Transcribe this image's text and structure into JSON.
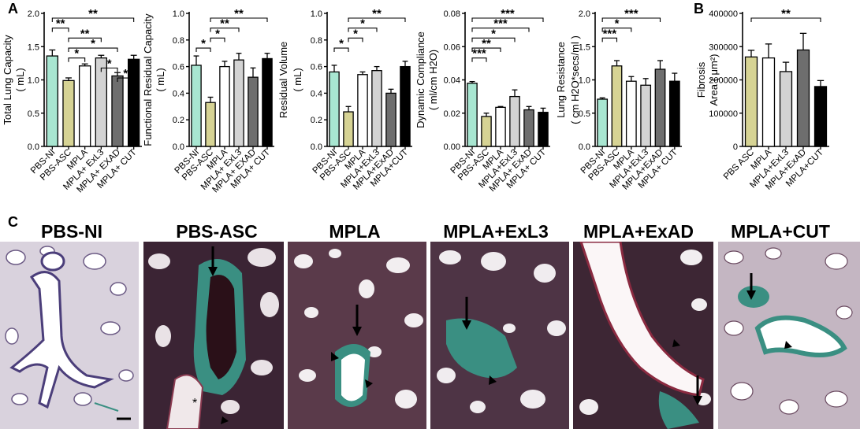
{
  "panel_letters": {
    "a": "A",
    "b": "B",
    "c": "C"
  },
  "colors": {
    "PBS-NI": "#a8e6d1",
    "PBS-ASC": "#d6d394",
    "MPLA": "#ffffff",
    "MPLA+ExL3": "#d3d3d3",
    "MPLA+ExAD": "#6e6e6e",
    "MPLA+CUT": "#000000",
    "fibrosis_stain": "#3a8f82",
    "tissue": "#4a2a3a",
    "background_tissue": "#c9c0cf"
  },
  "chart_data": [
    {
      "type": "bar",
      "panel": "A",
      "ylabel_lines": [
        "Total Lung Capacity",
        "( mL)"
      ],
      "categories": [
        "PBS-NI",
        "PBS-ASC",
        "MPLA",
        "MPLA+ ExL3",
        "MPLA+ EXAD",
        "MPLA+ CUT"
      ],
      "values": [
        1.36,
        0.99,
        1.21,
        1.33,
        1.06,
        1.31
      ],
      "errors": [
        0.09,
        0.04,
        0.03,
        0.04,
        0.05,
        0.06
      ],
      "ylim": [
        0,
        2.0
      ],
      "yticks": [
        "0.0",
        "0.5",
        "1.0",
        "1.5",
        "2.0"
      ],
      "significance": [
        {
          "from": 0,
          "to": 5,
          "label": "**"
        },
        {
          "from": 0,
          "to": 1,
          "label": "**"
        },
        {
          "from": 1,
          "to": 3,
          "label": "**"
        },
        {
          "from": 1,
          "to": 4,
          "label": "*"
        },
        {
          "from": 1,
          "to": 2,
          "label": "*"
        },
        {
          "from": 3,
          "to": 4,
          "label": "*"
        },
        {
          "from": 4,
          "to": 5,
          "label": "*"
        }
      ]
    },
    {
      "type": "bar",
      "ylabel_lines": [
        "Functional Residual Capacity",
        "( mL)"
      ],
      "categories": [
        "PBS-NI",
        "PBS-ASC",
        "MPLA",
        "MPLA+ ExL3",
        "MPLA+ EXAD",
        "MPLA+ CUT"
      ],
      "values": [
        0.61,
        0.33,
        0.6,
        0.65,
        0.52,
        0.66
      ],
      "errors": [
        0.07,
        0.04,
        0.04,
        0.05,
        0.07,
        0.04
      ],
      "ylim": [
        0,
        1.0
      ],
      "yticks": [
        "0.0",
        "0.2",
        "0.4",
        "0.6",
        "0.8",
        "1.0"
      ],
      "significance": [
        {
          "from": 1,
          "to": 5,
          "label": "**"
        },
        {
          "from": 1,
          "to": 3,
          "label": "**"
        },
        {
          "from": 1,
          "to": 2,
          "label": "*"
        },
        {
          "from": 0,
          "to": 1,
          "label": "*"
        }
      ]
    },
    {
      "type": "bar",
      "ylabel_lines": [
        "Residual Volume",
        "( mL)"
      ],
      "categories": [
        "PBS-NI",
        "PBS-ASC",
        "MPLA",
        "MPLA+ExL3",
        "MPLA+ExAD",
        "MPLA+CUT"
      ],
      "values": [
        0.56,
        0.26,
        0.54,
        0.57,
        0.4,
        0.6
      ],
      "errors": [
        0.05,
        0.04,
        0.02,
        0.03,
        0.03,
        0.04
      ],
      "ylim": [
        0,
        1.0
      ],
      "yticks": [
        "0.0",
        "0.2",
        "0.4",
        "0.6",
        "0.8",
        "1.0"
      ],
      "significance": [
        {
          "from": 1,
          "to": 5,
          "label": "**"
        },
        {
          "from": 1,
          "to": 3,
          "label": "*"
        },
        {
          "from": 1,
          "to": 2,
          "label": "*"
        },
        {
          "from": 0,
          "to": 1,
          "label": "*"
        }
      ]
    },
    {
      "type": "bar",
      "ylabel_lines": [
        "Dynamic Compliance",
        "( ml/cm H2O)"
      ],
      "categories": [
        "PBS-NI",
        "PBS-ASC",
        "MPLA",
        "MPLA+ExL3",
        "MPLA+ ExAD",
        "MPLA+ CUT"
      ],
      "values": [
        0.038,
        0.018,
        0.0235,
        0.03,
        0.022,
        0.0205
      ],
      "errors": [
        0.001,
        0.002,
        0.0005,
        0.004,
        0.002,
        0.0025
      ],
      "ylim": [
        0,
        0.08
      ],
      "yticks": [
        "0.00",
        "0.02",
        "0.04",
        "0.06",
        "0.08"
      ],
      "significance": [
        {
          "from": 0,
          "to": 5,
          "label": "***"
        },
        {
          "from": 0,
          "to": 4,
          "label": "***"
        },
        {
          "from": 0,
          "to": 3,
          "label": "*"
        },
        {
          "from": 0,
          "to": 2,
          "label": "**"
        },
        {
          "from": 0,
          "to": 1,
          "label": "***"
        }
      ]
    },
    {
      "type": "bar",
      "ylabel_lines": [
        "Lung Resistance",
        "( cm H2O*secs/ml )"
      ],
      "categories": [
        "PBS-NI",
        "PBS-ASC",
        "MPLA",
        "MPLA+ExL3",
        "MPLA+ExAD",
        "MPLA+ CUT"
      ],
      "values": [
        0.71,
        1.21,
        0.98,
        0.92,
        1.16,
        0.98
      ],
      "errors": [
        0.02,
        0.08,
        0.07,
        0.1,
        0.13,
        0.12
      ],
      "ylim": [
        0,
        2.0
      ],
      "yticks": [
        "0.0",
        "0.5",
        "1.0",
        "1.5",
        "2.0"
      ],
      "significance": [
        {
          "from": 0,
          "to": 4,
          "label": "***"
        },
        {
          "from": 0,
          "to": 2,
          "label": "*"
        },
        {
          "from": 0,
          "to": 1,
          "label": "***"
        }
      ]
    },
    {
      "type": "bar",
      "panel": "B",
      "ylabel_lines": [
        "Fibrosis",
        "Area ( μm²)"
      ],
      "categories": [
        "PBS ASC",
        "MPLA",
        "MPLA+ExL3",
        "MPLA+ExAD",
        "MPLA+CUT"
      ],
      "color_keys": [
        "PBS-ASC",
        "MPLA",
        "MPLA+ExL3",
        "MPLA+ExAD",
        "MPLA+CUT"
      ],
      "values": [
        269000,
        266000,
        225000,
        290000,
        180000
      ],
      "errors": [
        20000,
        42000,
        28000,
        50000,
        18000
      ],
      "ylim": [
        0,
        400000
      ],
      "yticks": [
        "0",
        "100000",
        "200000",
        "300000",
        "400000"
      ],
      "significance": [
        {
          "from": 0,
          "to": 4,
          "label": "**"
        }
      ]
    }
  ],
  "histology": {
    "titles": [
      "PBS-NI",
      "PBS-ASC",
      "MPLA",
      "MPLA+ExL3",
      "MPLA+ExAD",
      "MPLA+CUT"
    ],
    "annotations": {
      "asterisk": "*"
    }
  }
}
